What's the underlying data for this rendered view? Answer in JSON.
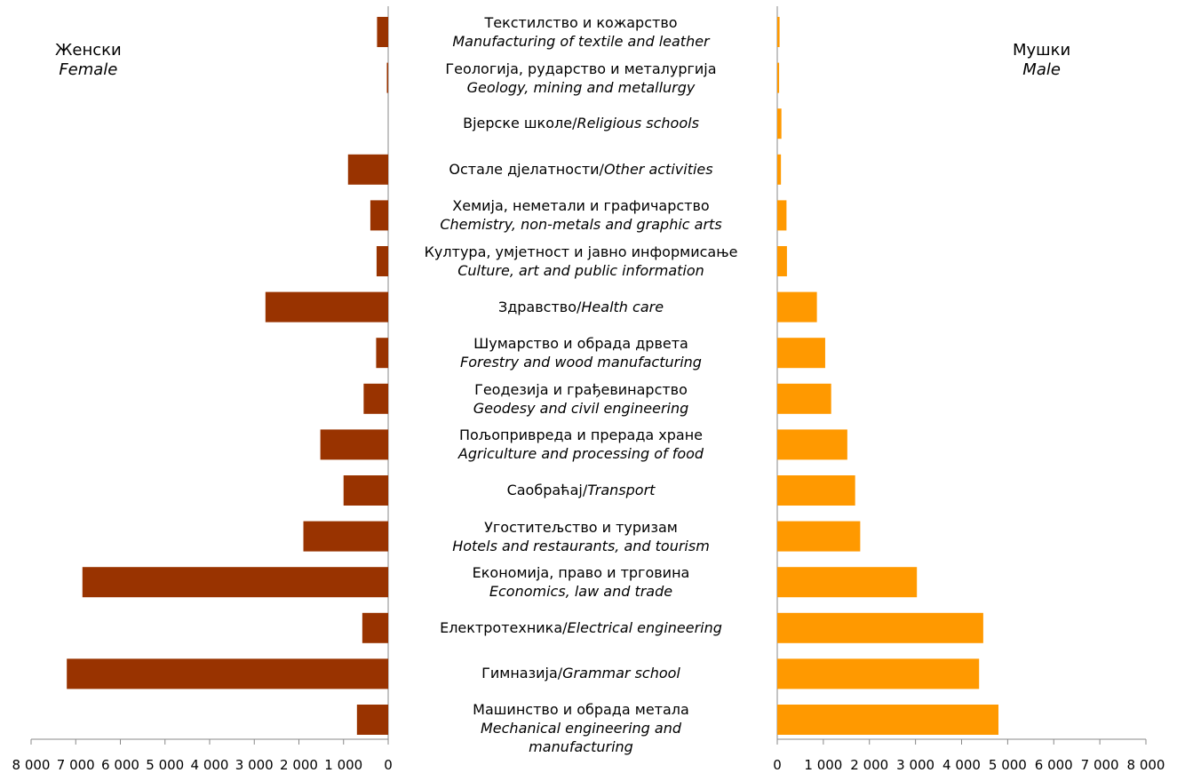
{
  "chart_data": {
    "type": "bar",
    "orientation": "horizontal",
    "layout": "butterfly",
    "categories": [
      {
        "sr": "Текстилство и кожарство",
        "en": "Manufacturing of textile and leather"
      },
      {
        "sr": "Геологија, рударство и металургија",
        "en": "Geology, mining and metallurgy"
      },
      {
        "sr": "Вјерске школе/",
        "en": "Religious schools",
        "inline": true
      },
      {
        "sr": "Остале дјелатности/",
        "en": "Other activities",
        "inline": true
      },
      {
        "sr": "Хемија, неметали и графичарство",
        "en": "Chemistry, non-metals and graphic arts"
      },
      {
        "sr": "Култура, умјетност и јавно информисање",
        "en": "Culture, art and public information"
      },
      {
        "sr": "Здравство/",
        "en": "Health care",
        "inline": true
      },
      {
        "sr": "Шумарство и обрада дрвета",
        "en": "Forestry and wood manufacturing"
      },
      {
        "sr": "Геодезија и грађевинарство",
        "en": "Geodesy and civil engineering"
      },
      {
        "sr": "Пољопривреда и прерада хране",
        "en": "Agriculture and processing of food"
      },
      {
        "sr": "Саобраћај/",
        "en": "Transport",
        "inline": true
      },
      {
        "sr": "Угоститељство и туризам",
        "en": "Hotels and restaurants, and tourism"
      },
      {
        "sr": "Економија, право и трговина",
        "en": "Economics, law and trade"
      },
      {
        "sr": "Електротехника/",
        "en": "Electrical engineering",
        "inline": true
      },
      {
        "sr": "Гимназија/",
        "en": "Grammar school",
        "inline": true
      },
      {
        "sr": "Машинство и обрада метала",
        "en": "Mechanical engineering and manufacturing"
      }
    ],
    "series": [
      {
        "name_sr": "Женски",
        "name_en": "Female",
        "side": "left",
        "color": "#993300",
        "values": [
          250,
          30,
          0,
          900,
          400,
          260,
          2750,
          270,
          550,
          1520,
          1000,
          1900,
          6850,
          580,
          7200,
          700
        ]
      },
      {
        "name_sr": "Мушки",
        "name_en": "Male",
        "side": "right",
        "color": "#FF9900",
        "values": [
          50,
          40,
          90,
          80,
          200,
          210,
          860,
          1040,
          1170,
          1520,
          1690,
          1800,
          3030,
          4470,
          4380,
          4800
        ]
      }
    ],
    "xlim": [
      0,
      8000
    ],
    "ticks": [
      0,
      1000,
      2000,
      3000,
      4000,
      5000,
      6000,
      7000,
      8000
    ],
    "tick_labels": [
      "0",
      "1 000",
      "2 000",
      "3 000",
      "4 000",
      "5 000",
      "6 000",
      "7 000",
      "8 000"
    ],
    "grid": false
  }
}
